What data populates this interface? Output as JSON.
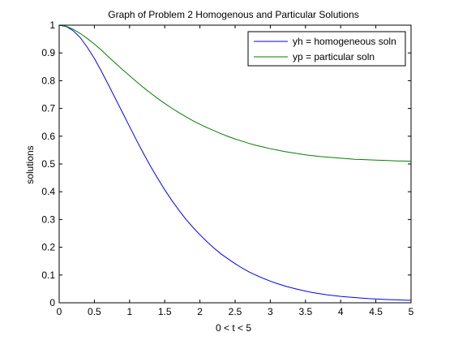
{
  "chart_data": {
    "type": "line",
    "title": "Graph of Problem 2 Homogenous and Particular Solutions",
    "xlabel": "0 < t < 5",
    "ylabel": "solutions",
    "xlim": [
      0,
      5
    ],
    "ylim": [
      0,
      1
    ],
    "grid": false,
    "legend_position": "top-right",
    "x_ticks": [
      "0",
      "0.5",
      "1",
      "1.5",
      "2",
      "2.5",
      "3",
      "3.5",
      "4",
      "4.5",
      "5"
    ],
    "y_ticks": [
      "0",
      "0.1",
      "0.2",
      "0.3",
      "0.4",
      "0.5",
      "0.6",
      "0.7",
      "0.8",
      "0.9",
      "1"
    ],
    "x": [
      0,
      0.1,
      0.2,
      0.3,
      0.4,
      0.5,
      0.6,
      0.7,
      0.8,
      0.9,
      1.0,
      1.1,
      1.2,
      1.3,
      1.4,
      1.5,
      1.6,
      1.7,
      1.8,
      1.9,
      2.0,
      2.1,
      2.2,
      2.3,
      2.4,
      2.5,
      2.6,
      2.7,
      2.8,
      2.9,
      3.0,
      3.1,
      3.2,
      3.3,
      3.4,
      3.5,
      3.6,
      3.7,
      3.8,
      3.9,
      4.0,
      4.1,
      4.2,
      4.3,
      4.4,
      4.5,
      4.6,
      4.7,
      4.8,
      4.9,
      5.0
    ],
    "series": [
      {
        "name": "yh = homogeneous soln",
        "color": "#0000ff",
        "values": [
          1.0,
          0.995,
          0.98,
          0.955,
          0.92,
          0.88,
          0.834,
          0.785,
          0.735,
          0.685,
          0.635,
          0.585,
          0.537,
          0.491,
          0.448,
          0.407,
          0.369,
          0.334,
          0.301,
          0.272,
          0.245,
          0.22,
          0.197,
          0.176,
          0.158,
          0.141,
          0.125,
          0.111,
          0.099,
          0.088,
          0.078,
          0.069,
          0.061,
          0.054,
          0.048,
          0.042,
          0.037,
          0.033,
          0.029,
          0.026,
          0.023,
          0.021,
          0.019,
          0.017,
          0.015,
          0.014,
          0.0125,
          0.0115,
          0.0105,
          0.0095,
          0.009
        ]
      },
      {
        "name": "yp = particular soln",
        "color": "#008000",
        "values": [
          1.0,
          0.996,
          0.985,
          0.97,
          0.952,
          0.932,
          0.91,
          0.886,
          0.863,
          0.84,
          0.818,
          0.796,
          0.775,
          0.755,
          0.736,
          0.718,
          0.701,
          0.685,
          0.67,
          0.656,
          0.643,
          0.631,
          0.62,
          0.609,
          0.599,
          0.59,
          0.582,
          0.574,
          0.567,
          0.561,
          0.555,
          0.55,
          0.545,
          0.541,
          0.537,
          0.533,
          0.53,
          0.527,
          0.525,
          0.523,
          0.521,
          0.519,
          0.517,
          0.516,
          0.515,
          0.514,
          0.513,
          0.512,
          0.511,
          0.5105,
          0.51
        ]
      }
    ]
  }
}
